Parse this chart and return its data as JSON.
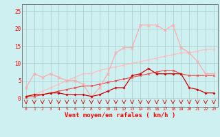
{
  "x": [
    0,
    1,
    2,
    3,
    4,
    5,
    6,
    7,
    8,
    9,
    10,
    11,
    12,
    13,
    14,
    15,
    16,
    17,
    18,
    19,
    20,
    21,
    22,
    23
  ],
  "line_rafales": [
    3,
    7,
    6,
    7,
    6,
    5,
    5,
    4,
    0.3,
    3,
    7,
    13,
    14.5,
    14.5,
    21,
    21,
    21,
    19.5,
    21,
    14.5,
    13,
    10.5,
    7,
    7
  ],
  "line_moyen": [
    0.5,
    1,
    1,
    1.5,
    1.5,
    1,
    1,
    1,
    0.5,
    1,
    2,
    3,
    3,
    6.5,
    7,
    8.5,
    7,
    7,
    7,
    7,
    3,
    2.5,
    1.5,
    1.5
  ],
  "line_trend1": [
    0.5,
    1,
    2,
    3,
    4,
    5,
    6,
    7,
    7,
    8,
    8.5,
    9,
    9.5,
    10,
    10.5,
    11,
    11.5,
    12,
    12.5,
    13,
    13,
    13.5,
    14,
    14
  ],
  "line_trend2": [
    0.3,
    0.5,
    1,
    1.5,
    2,
    2.5,
    3,
    3.5,
    3.5,
    4,
    4.5,
    5,
    5.5,
    6,
    6.5,
    7,
    7.5,
    8,
    8,
    7,
    6.5,
    6.5,
    6.5,
    6.5
  ],
  "color_rafales": "#ffaaaa",
  "color_moyen": "#cc0000",
  "color_trend1": "#ffbbbb",
  "color_trend2": "#ee4444",
  "color_arrow": "#cc0000",
  "bg_color": "#cff0f0",
  "grid_color": "#aacccc",
  "xlabel": "Vent moyen/en rafales ( km/h )",
  "yticks": [
    0,
    5,
    10,
    15,
    20,
    25
  ],
  "ylim": [
    -2.5,
    27
  ],
  "xlim": [
    -0.5,
    23.5
  ]
}
